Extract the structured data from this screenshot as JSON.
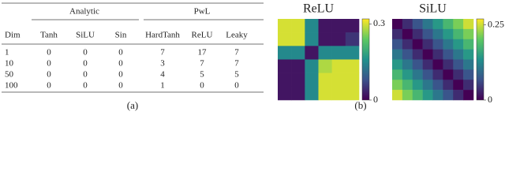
{
  "table": {
    "groups": [
      "Analytic",
      "PwL"
    ],
    "header": [
      "Dim",
      "Tanh",
      "SiLU",
      "Sin",
      "HardTanh",
      "ReLU",
      "Leaky"
    ],
    "rows": [
      [
        "1",
        "0",
        "0",
        "0",
        "7",
        "17",
        "7"
      ],
      [
        "10",
        "0",
        "0",
        "0",
        "3",
        "7",
        "7"
      ],
      [
        "50",
        "0",
        "0",
        "0",
        "4",
        "5",
        "5"
      ],
      [
        "100",
        "0",
        "0",
        "0",
        "1",
        "0",
        "0"
      ]
    ]
  },
  "label_a": "(a)",
  "label_b": "(b)",
  "chart_data": [
    {
      "type": "heatmap",
      "title": "ReLU",
      "zlim": [
        0,
        0.32
      ],
      "zticks": [
        0,
        0.3
      ],
      "matrix": [
        [
          0.3,
          0.3,
          0.15,
          0.02,
          0.02,
          0.02
        ],
        [
          0.3,
          0.3,
          0.15,
          0.02,
          0.02,
          0.05
        ],
        [
          0.15,
          0.15,
          0.02,
          0.15,
          0.15,
          0.15
        ],
        [
          0.02,
          0.02,
          0.15,
          0.28,
          0.3,
          0.3
        ],
        [
          0.02,
          0.02,
          0.15,
          0.3,
          0.3,
          0.3
        ],
        [
          0.02,
          0.02,
          0.15,
          0.3,
          0.3,
          0.3
        ]
      ]
    },
    {
      "type": "heatmap",
      "title": "SiLU",
      "zlim": [
        0,
        0.27
      ],
      "zticks": [
        0,
        0.25
      ],
      "matrix": [
        [
          0,
          0.036,
          0.071,
          0.107,
          0.143,
          0.179,
          0.214,
          0.25
        ],
        [
          0.036,
          0,
          0.036,
          0.071,
          0.107,
          0.143,
          0.179,
          0.214
        ],
        [
          0.071,
          0.036,
          0,
          0.036,
          0.071,
          0.107,
          0.143,
          0.179
        ],
        [
          0.107,
          0.071,
          0.036,
          0,
          0.036,
          0.071,
          0.107,
          0.143
        ],
        [
          0.143,
          0.107,
          0.071,
          0.036,
          0,
          0.036,
          0.071,
          0.107
        ],
        [
          0.179,
          0.143,
          0.107,
          0.071,
          0.036,
          0,
          0.036,
          0.071
        ],
        [
          0.214,
          0.179,
          0.143,
          0.107,
          0.071,
          0.036,
          0,
          0.036
        ],
        [
          0.25,
          0.214,
          0.179,
          0.143,
          0.107,
          0.071,
          0.036,
          0
        ]
      ]
    }
  ]
}
